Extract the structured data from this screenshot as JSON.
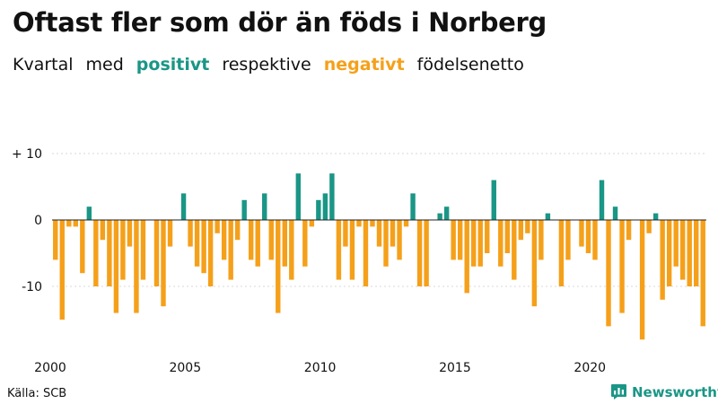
{
  "title": "Oftast fler som dör än föds i Norberg",
  "subtitle": {
    "part1": "Kvartal",
    "part2": "med",
    "positive_word": "positivt",
    "part3": "respektive",
    "negative_word": "negativt",
    "part4": "födelsenetto"
  },
  "source": "Källa: SCB",
  "brand": "Newsworthy",
  "colors": {
    "positive": "#1a9686",
    "negative": "#f5a01a",
    "text": "#111111",
    "grid": "#d9d9d9",
    "brand": "#1a9686"
  },
  "chart_data": {
    "type": "bar",
    "title": "Oftast fler som dör än föds i Norberg",
    "xlabel": "",
    "ylabel": "",
    "ylim": [
      -18,
      10
    ],
    "y_ticks": [
      {
        "value": 10,
        "label": "+ 10"
      },
      {
        "value": 0,
        "label": "0"
      },
      {
        "value": -10,
        "label": "-10"
      }
    ],
    "x_ticks": [
      {
        "index": 0,
        "label": "2000"
      },
      {
        "index": 20,
        "label": "2005"
      },
      {
        "index": 40,
        "label": "2010"
      },
      {
        "index": 60,
        "label": "2015"
      },
      {
        "index": 80,
        "label": "2020"
      }
    ],
    "start_year": 2000,
    "frequency": "quarterly",
    "values": [
      -6,
      -15,
      -1,
      -1,
      -8,
      2,
      -10,
      -3,
      -10,
      -14,
      -9,
      -4,
      -14,
      -9,
      0,
      -10,
      -13,
      -4,
      0,
      4,
      -4,
      -7,
      -8,
      -10,
      -2,
      -6,
      -9,
      -3,
      3,
      -6,
      -7,
      4,
      -6,
      -14,
      -7,
      -9,
      7,
      -7,
      -1,
      3,
      4,
      7,
      -9,
      -4,
      -9,
      -1,
      -10,
      -1,
      -4,
      -7,
      -4,
      -6,
      -1,
      4,
      -10,
      -10,
      0,
      1,
      2,
      -6,
      -6,
      -11,
      -7,
      -7,
      -5,
      6,
      -7,
      -5,
      -9,
      -3,
      -2,
      -13,
      -6,
      1,
      0,
      -10,
      -6,
      0,
      -4,
      -5,
      -6,
      6,
      -16,
      2,
      -14,
      -3,
      0,
      -18,
      -2,
      1,
      -12,
      -10,
      -7,
      -9,
      -10,
      -10,
      -16
    ]
  }
}
